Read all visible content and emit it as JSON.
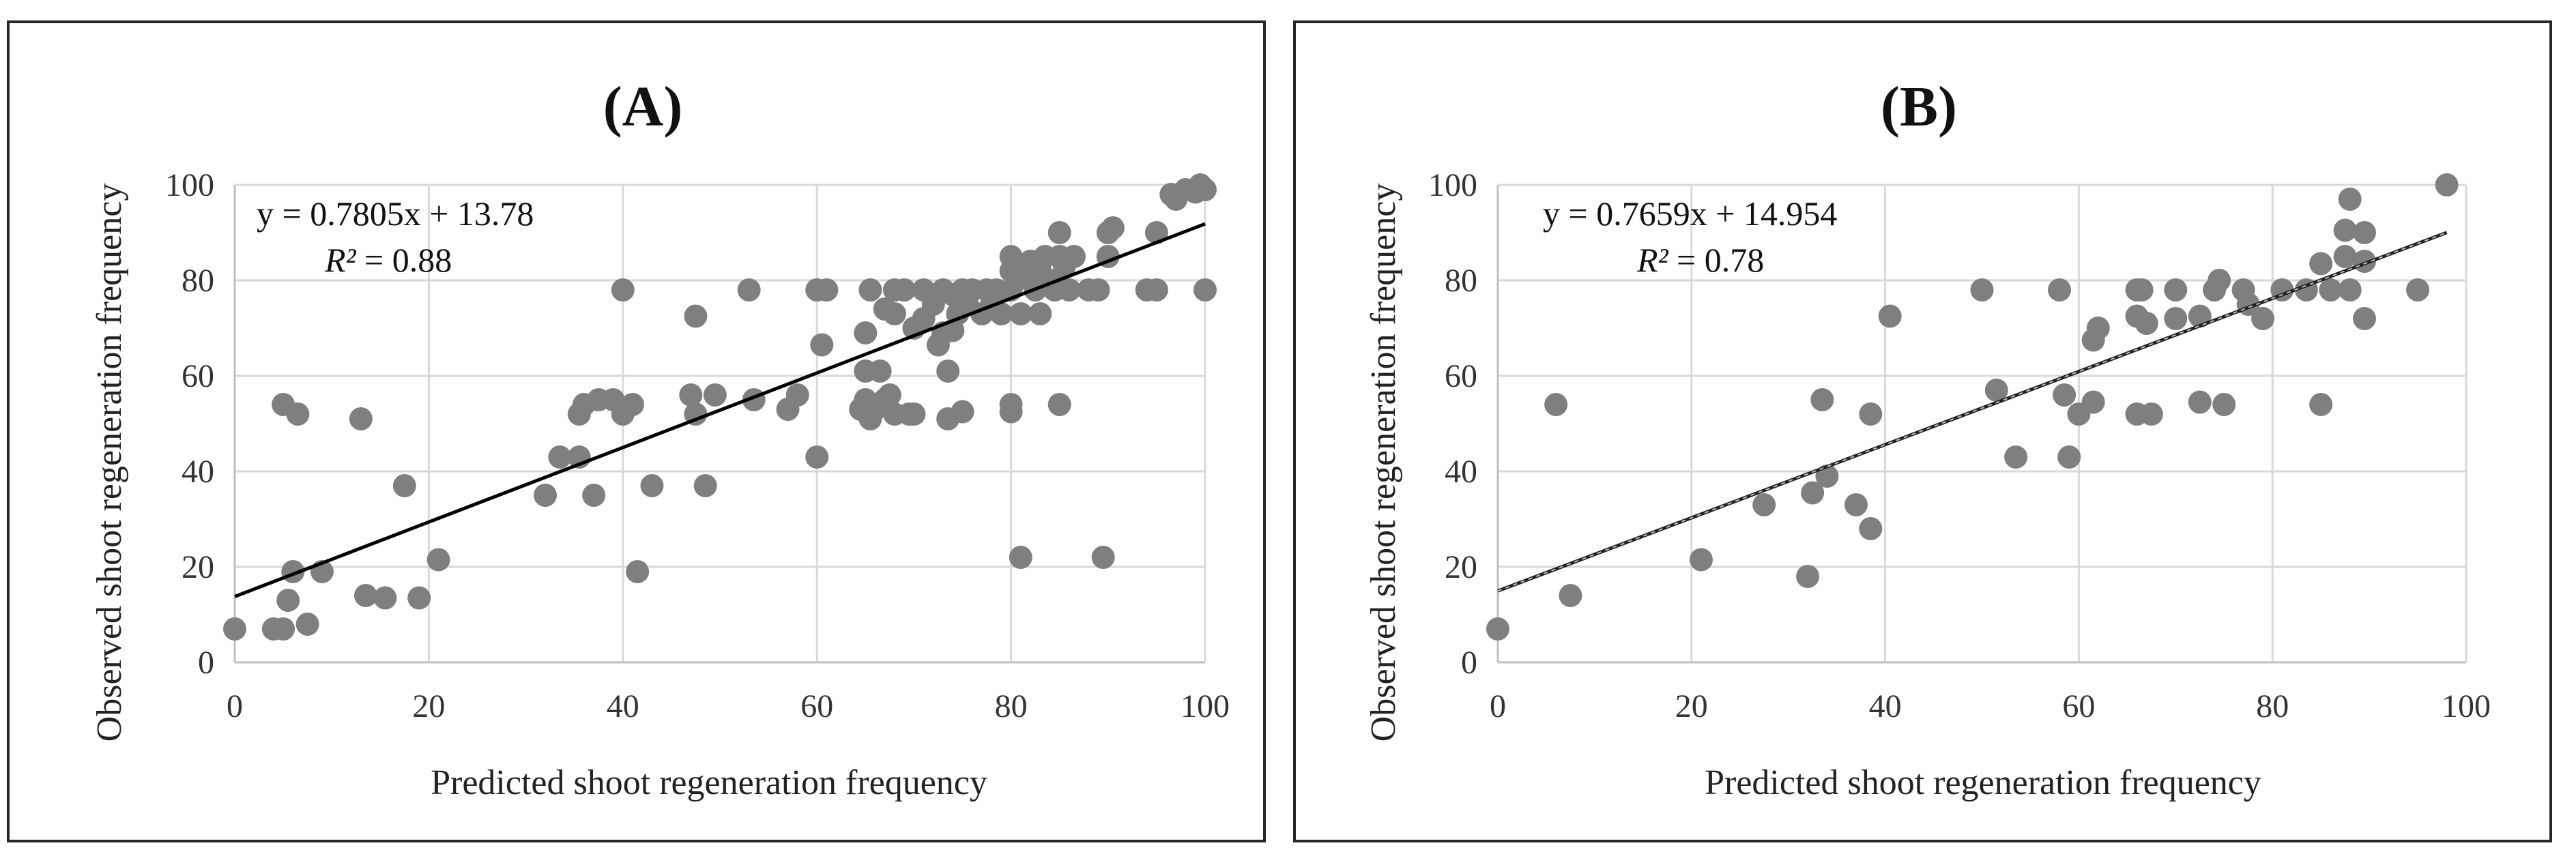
{
  "chart_data": [
    {
      "type": "scatter",
      "panel_title": "(A)",
      "xlabel": "Predicted shoot regeneration frequency",
      "ylabel": "Observed shoot regeneration frequency",
      "xlim": [
        0,
        100
      ],
      "ylim": [
        0,
        100
      ],
      "xticks": [
        "0",
        "20",
        "40",
        "60",
        "80",
        "100"
      ],
      "yticks": [
        "0",
        "20",
        "40",
        "60",
        "80",
        "100"
      ],
      "grid": true,
      "equation": "y = 0.7805x + 13.78",
      "r2_label": "R²",
      "r2_value": " = 0.88",
      "trendline": {
        "slope": 0.7805,
        "intercept": 13.78,
        "x_range": [
          0,
          100
        ],
        "style": "solid"
      },
      "points": [
        [
          0,
          7
        ],
        [
          4,
          7
        ],
        [
          5,
          7
        ],
        [
          7.5,
          8
        ],
        [
          5.5,
          13
        ],
        [
          6,
          19
        ],
        [
          9,
          19
        ],
        [
          5,
          54
        ],
        [
          6.5,
          52
        ],
        [
          13,
          51
        ],
        [
          13.5,
          14
        ],
        [
          15.5,
          13.5
        ],
        [
          17.5,
          37
        ],
        [
          19,
          13.5
        ],
        [
          21,
          21.5
        ],
        [
          32,
          35
        ],
        [
          33.5,
          43
        ],
        [
          35.5,
          43
        ],
        [
          35.5,
          52
        ],
        [
          36,
          54
        ],
        [
          37,
          35
        ],
        [
          37.5,
          55
        ],
        [
          39,
          55
        ],
        [
          40,
          52
        ],
        [
          40,
          78
        ],
        [
          41,
          54
        ],
        [
          41.5,
          19
        ],
        [
          43,
          37
        ],
        [
          47,
          56
        ],
        [
          47.5,
          52
        ],
        [
          47.5,
          72.5
        ],
        [
          48.5,
          37
        ],
        [
          49.5,
          56
        ],
        [
          53,
          78
        ],
        [
          53.5,
          55
        ],
        [
          57,
          53
        ],
        [
          58,
          56
        ],
        [
          60,
          43
        ],
        [
          60,
          78
        ],
        [
          60.5,
          66.5
        ],
        [
          61,
          78
        ],
        [
          64.5,
          53
        ],
        [
          65,
          55
        ],
        [
          65,
          61
        ],
        [
          65,
          69
        ],
        [
          65.5,
          78
        ],
        [
          65.5,
          51
        ],
        [
          66,
          53
        ],
        [
          66.5,
          61
        ],
        [
          67,
          55
        ],
        [
          67,
          74
        ],
        [
          67.5,
          56
        ],
        [
          68,
          52
        ],
        [
          68,
          73
        ],
        [
          68,
          78
        ],
        [
          69,
          78
        ],
        [
          69.5,
          52
        ],
        [
          70,
          52
        ],
        [
          70,
          70
        ],
        [
          71,
          78
        ],
        [
          71,
          72
        ],
        [
          72,
          75
        ],
        [
          72.5,
          66.5
        ],
        [
          73,
          78
        ],
        [
          73,
          69
        ],
        [
          73.5,
          51
        ],
        [
          73.5,
          61
        ],
        [
          74,
          77
        ],
        [
          74,
          69.5
        ],
        [
          74.5,
          73
        ],
        [
          75,
          78
        ],
        [
          75,
          52.5
        ],
        [
          75.5,
          75
        ],
        [
          76,
          78
        ],
        [
          77,
          73
        ],
        [
          77.5,
          78
        ],
        [
          78,
          75
        ],
        [
          78.5,
          78
        ],
        [
          79,
          73
        ],
        [
          80,
          52.5
        ],
        [
          80,
          54
        ],
        [
          80,
          85
        ],
        [
          80,
          78
        ],
        [
          80,
          82
        ],
        [
          80.5,
          80
        ],
        [
          81,
          22
        ],
        [
          81,
          73
        ],
        [
          81.5,
          81
        ],
        [
          82,
          84
        ],
        [
          82.5,
          78
        ],
        [
          83,
          73
        ],
        [
          83,
          82
        ],
        [
          83.5,
          85
        ],
        [
          84,
          80
        ],
        [
          84.5,
          78
        ],
        [
          85,
          54
        ],
        [
          85,
          85
        ],
        [
          85,
          90
        ],
        [
          85.5,
          83
        ],
        [
          86,
          78
        ],
        [
          86.5,
          85
        ],
        [
          88,
          78
        ],
        [
          89,
          78
        ],
        [
          89.5,
          22
        ],
        [
          90,
          90
        ],
        [
          90,
          85
        ],
        [
          90.5,
          91
        ],
        [
          94,
          78
        ],
        [
          95,
          78
        ],
        [
          95,
          90
        ],
        [
          96.5,
          98
        ],
        [
          97,
          97
        ],
        [
          98,
          99
        ],
        [
          99,
          98.5
        ],
        [
          99.5,
          100
        ],
        [
          100,
          99
        ],
        [
          100,
          78
        ]
      ]
    },
    {
      "type": "scatter",
      "panel_title": "(B)",
      "xlabel": "Predicted shoot regeneration frequency",
      "ylabel": "Observed shoot regeneration frequency",
      "xlim": [
        0,
        100
      ],
      "ylim": [
        0,
        100
      ],
      "xticks": [
        "0",
        "20",
        "40",
        "60",
        "80",
        "100"
      ],
      "yticks": [
        "0",
        "20",
        "40",
        "60",
        "80",
        "100"
      ],
      "grid": true,
      "equation": "y = 0.7659x + 14.954",
      "r2_label": "R²",
      "r2_value": " = 0.78",
      "trendline": {
        "slope": 0.7659,
        "intercept": 14.954,
        "x_range": [
          0,
          98
        ],
        "style": "dashed"
      },
      "points": [
        [
          0,
          7
        ],
        [
          6,
          54
        ],
        [
          7.5,
          14
        ],
        [
          21,
          21.5
        ],
        [
          27.5,
          33
        ],
        [
          32,
          18
        ],
        [
          32.5,
          35.5
        ],
        [
          33.5,
          55
        ],
        [
          34,
          39
        ],
        [
          37,
          33
        ],
        [
          38.5,
          52
        ],
        [
          38.5,
          28
        ],
        [
          40.5,
          72.5
        ],
        [
          50,
          78
        ],
        [
          51.5,
          57
        ],
        [
          53.5,
          43
        ],
        [
          58,
          78
        ],
        [
          58.5,
          56
        ],
        [
          59,
          43
        ],
        [
          60,
          52
        ],
        [
          61.5,
          54.5
        ],
        [
          61.5,
          67.5
        ],
        [
          62,
          70
        ],
        [
          66,
          78
        ],
        [
          66,
          72.5
        ],
        [
          66,
          52
        ],
        [
          66.5,
          78
        ],
        [
          67,
          71
        ],
        [
          67.5,
          52
        ],
        [
          70,
          78
        ],
        [
          70,
          72
        ],
        [
          72.5,
          72.5
        ],
        [
          72.5,
          54.5
        ],
        [
          74,
          78
        ],
        [
          74.5,
          80
        ],
        [
          75,
          54
        ],
        [
          77,
          78
        ],
        [
          77.5,
          75
        ],
        [
          79,
          72
        ],
        [
          81,
          78
        ],
        [
          83.5,
          78
        ],
        [
          85,
          83.5
        ],
        [
          85,
          54
        ],
        [
          86,
          78
        ],
        [
          87.5,
          85
        ],
        [
          87.5,
          90.5
        ],
        [
          88,
          78
        ],
        [
          88,
          97
        ],
        [
          89.5,
          90
        ],
        [
          89.5,
          84
        ],
        [
          89.5,
          72
        ],
        [
          95,
          78
        ],
        [
          98,
          100
        ]
      ]
    }
  ]
}
